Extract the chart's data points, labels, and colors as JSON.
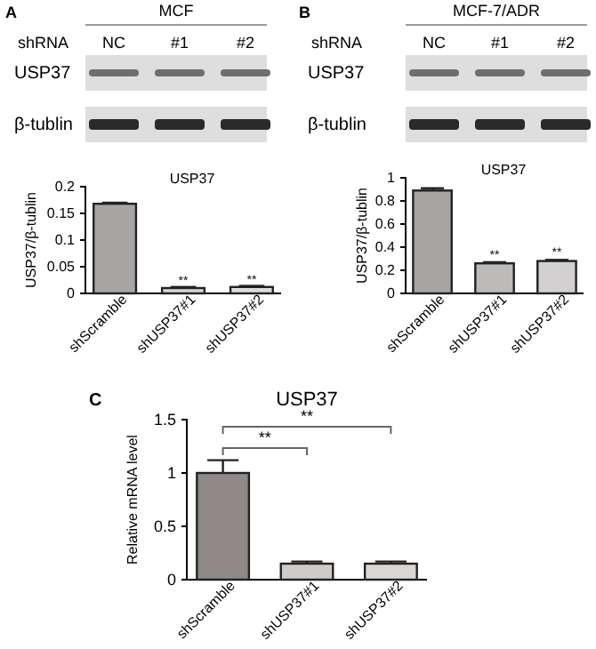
{
  "chart_data": [
    {
      "type": "other",
      "title": "MCF",
      "categories": [
        "NC",
        "#1",
        "#2"
      ],
      "annotations": [
        "A",
        "shRNA",
        "USP37",
        "β-tublin"
      ]
    },
    {
      "type": "bar",
      "title": "USP37",
      "ylabel": "USP37/β-tublin",
      "categories": [
        "shScramble",
        "shUSP37#1",
        "shUSP37#2"
      ],
      "values": [
        0.168,
        0.01,
        0.012
      ],
      "errors": [
        0.002,
        0.002,
        0.002
      ],
      "colors": [
        "#a9a5a4",
        "#d6d4d4",
        "#dedcdc"
      ],
      "ylim": [
        0,
        0.2
      ],
      "yticks": [
        0,
        0.05,
        0.1,
        0.15,
        0.2
      ],
      "grid": false,
      "annotations": [
        {
          "text": "**",
          "x": "shUSP37#1",
          "y": 0.016
        },
        {
          "text": "**",
          "x": "shUSP37#2",
          "y": 0.018
        }
      ]
    },
    {
      "type": "other",
      "title": "MCF-7/ADR",
      "categories": [
        "NC",
        "#1",
        "#2"
      ],
      "annotations": [
        "B",
        "shRNA",
        "USP37",
        "β-tublin"
      ]
    },
    {
      "type": "bar",
      "title": "USP37",
      "ylabel": "USP37/β-tublin",
      "categories": [
        "shScramble",
        "shUSP37#1",
        "shUSP37#2"
      ],
      "values": [
        0.89,
        0.26,
        0.28
      ],
      "errors": [
        0.02,
        0.01,
        0.01
      ],
      "colors": [
        "#a9a5a4",
        "#bdbaba",
        "#d2d0d0"
      ],
      "ylim": [
        0,
        1
      ],
      "yticks": [
        0,
        0.2,
        0.4,
        0.6,
        0.8,
        1
      ],
      "grid": false,
      "annotations": [
        {
          "text": "**",
          "x": "shUSP37#1",
          "y": 0.3
        },
        {
          "text": "**",
          "x": "shUSP37#2",
          "y": 0.32
        }
      ]
    },
    {
      "type": "bar",
      "title": "USP37",
      "ylabel": "Relative mRNA level",
      "categories": [
        "shScramble",
        "shUSP37#1",
        "shUSP37#2"
      ],
      "values": [
        1.0,
        0.15,
        0.15
      ],
      "errors": [
        0.12,
        0.02,
        0.02
      ],
      "colors": [
        "#8f8987",
        "#cfcbc9",
        "#d9d6d4"
      ],
      "ylim": [
        0,
        1.5
      ],
      "yticks": [
        0,
        0.5,
        1,
        1.5
      ],
      "grid": false,
      "annotations": [
        "C",
        "**",
        "**"
      ]
    }
  ]
}
